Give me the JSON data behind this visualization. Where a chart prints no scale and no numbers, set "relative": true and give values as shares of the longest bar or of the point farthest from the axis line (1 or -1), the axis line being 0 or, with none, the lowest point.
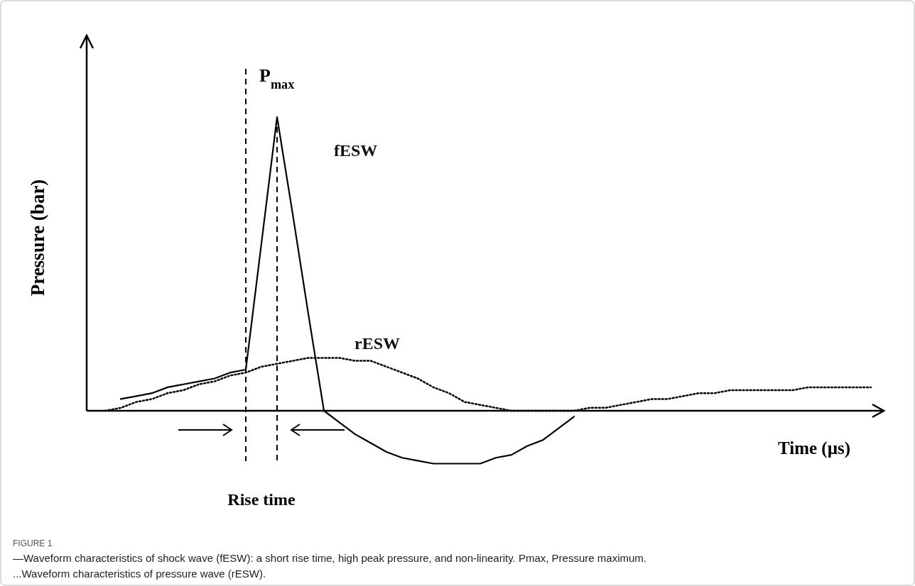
{
  "chart_data": {
    "type": "line",
    "relative": true,
    "xlabel": "Time (µs)",
    "ylabel": "Pressure (bar)",
    "categories": [
      null,
      null,
      null,
      null,
      null,
      null,
      null,
      null,
      null,
      null,
      null,
      null,
      null,
      null,
      null,
      null,
      null,
      null,
      null,
      null,
      null,
      null,
      null,
      null,
      null,
      null,
      null,
      null,
      null,
      null,
      null,
      null,
      null,
      null,
      null,
      null,
      null,
      null,
      null,
      null,
      null,
      null,
      null,
      null,
      null,
      null,
      null,
      null,
      null,
      null,
      null
    ],
    "series": [
      {
        "name": "fESW",
        "color": "#000000",
        "line_style": "solid",
        "values": [
          null,
          null,
          0.04,
          0.05,
          0.06,
          0.08,
          0.09,
          0.1,
          0.11,
          0.13,
          0.14,
          0.57,
          1,
          0.67,
          0.33,
          0,
          -0.04,
          -0.08,
          -0.11,
          -0.14,
          -0.16,
          -0.17,
          -0.18,
          -0.18,
          -0.18,
          -0.18,
          -0.16,
          -0.15,
          -0.12,
          -0.1,
          -0.06,
          -0.02,
          null,
          null,
          null,
          null,
          null,
          null,
          null,
          null,
          null,
          null,
          null,
          null,
          null,
          null,
          null,
          null,
          null,
          null,
          null
        ]
      },
      {
        "name": "rESW",
        "color": "#000000",
        "line_style": "dotted",
        "values": [
          null,
          0,
          0.01,
          0.03,
          0.04,
          0.06,
          0.07,
          0.09,
          0.1,
          0.12,
          0.13,
          0.15,
          0.16,
          0.17,
          0.18,
          0.18,
          0.18,
          0.17,
          0.17,
          0.15,
          0.13,
          0.11,
          0.08,
          0.06,
          0.03,
          0.02,
          0.01,
          0,
          0,
          0,
          0,
          0,
          0.01,
          0.01,
          0.02,
          0.03,
          0.04,
          0.04,
          0.05,
          0.06,
          0.06,
          0.07,
          0.07,
          0.07,
          0.07,
          0.07,
          0.08,
          0.08,
          0.08,
          0.08,
          0.08
        ]
      }
    ],
    "annotations": [
      {
        "text": "P$_{max}$",
        "y": 1
      },
      "Rise time",
      "FIGURE 1",
      "—Waveform characteristics of shock wave (fESW): a short rise time, high peak pressure, and non-linearity. Pmax, Pressure maximum.",
      "...Waveform characteristics of pressure wave (rESW)."
    ]
  }
}
